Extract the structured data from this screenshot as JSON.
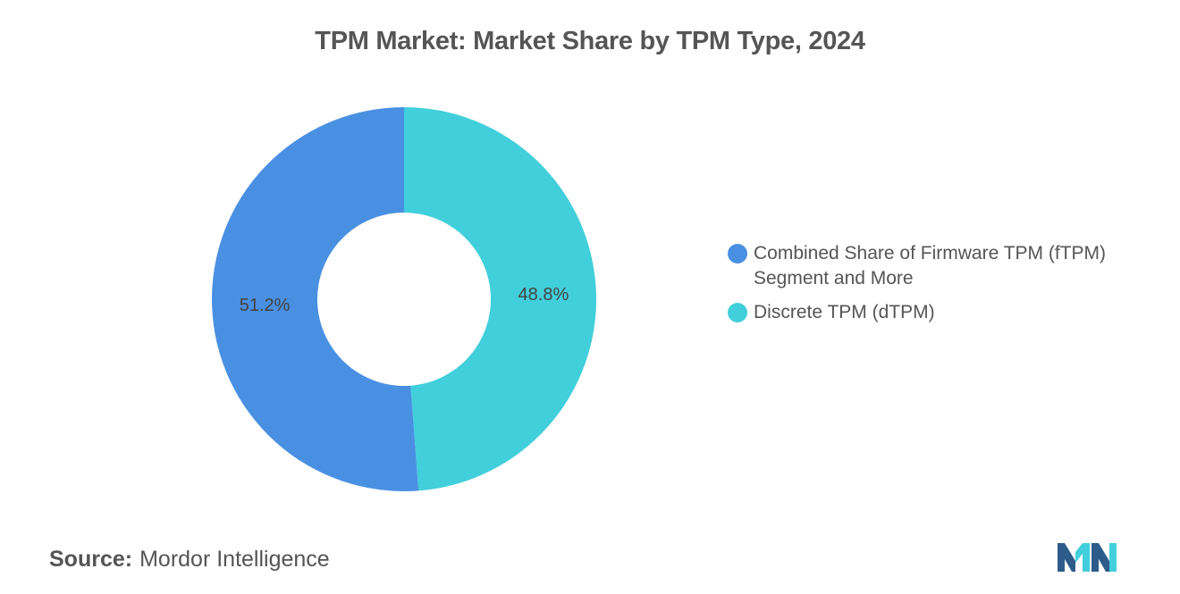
{
  "title": "TPM Market: Market Share by TPM Type, 2024",
  "chart_data": {
    "type": "pie",
    "donut": true,
    "title": "TPM Market: Market Share by TPM Type, 2024",
    "categories": [
      "Combined Share of Firmware TPM (fTPM) Segment and More",
      "Discrete TPM (dTPM)"
    ],
    "values": [
      51.2,
      48.8
    ],
    "value_labels": [
      "51.2%",
      "48.8%"
    ],
    "colors": [
      "#4A90E2",
      "#41CFDB"
    ],
    "legend_position": "right"
  },
  "legend": {
    "items": [
      {
        "label_line1": "Combined Share of Firmware TPM (fTPM)",
        "label_line2": "Segment and More",
        "color": "#4A90E2"
      },
      {
        "label_line1": "Discrete TPM (dTPM)",
        "label_line2": "",
        "color": "#41CFDB"
      }
    ]
  },
  "source": {
    "prefix": "Source:",
    "text": "Mordor Intelligence"
  },
  "logo": {
    "icon": "mordor-intelligence-logo-icon",
    "colors": [
      "#2E5C8A",
      "#41CFDB"
    ]
  }
}
